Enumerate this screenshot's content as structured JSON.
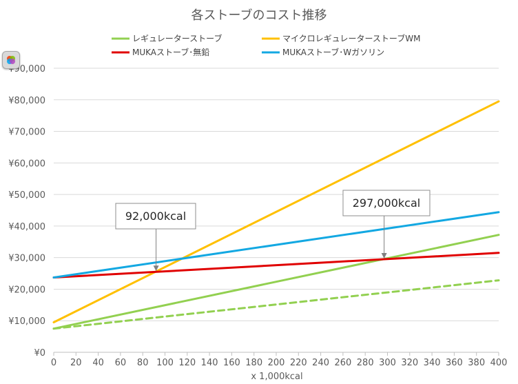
{
  "chart_data": {
    "type": "line",
    "title": "各ストーブのコスト推移",
    "xlabel": "x 1,000kcal",
    "ylabel": "",
    "xlim": [
      0,
      400
    ],
    "ylim": [
      0,
      90000
    ],
    "x_ticks": [
      "0",
      "20",
      "40",
      "60",
      "80",
      "100",
      "120",
      "140",
      "160",
      "180",
      "200",
      "220",
      "240",
      "260",
      "280",
      "300",
      "320",
      "340",
      "360",
      "380",
      "400"
    ],
    "y_ticks": [
      "¥0",
      "¥10,000",
      "¥20,000",
      "¥30,000",
      "¥40,000",
      "¥50,000",
      "¥60,000",
      "¥70,000",
      "¥80,000",
      "¥90,000"
    ],
    "grid": true,
    "legend_position": "top",
    "series": [
      {
        "name": "レギュレーターストーブ",
        "color": "#92d050",
        "dash": false,
        "x": [
          0,
          400
        ],
        "y": [
          7500,
          37200
        ]
      },
      {
        "name": "",
        "color": "#92d050",
        "dash": true,
        "x": [
          0,
          400
        ],
        "y": [
          7500,
          22800
        ]
      },
      {
        "name": "マイクロレギュレーターストーブWM",
        "color": "#ffc000",
        "dash": false,
        "x": [
          0,
          400
        ],
        "y": [
          9500,
          79500
        ]
      },
      {
        "name": "MUKAストーブ･無鉛",
        "color": "#e00000",
        "dash": false,
        "x": [
          0,
          400
        ],
        "y": [
          23700,
          31500
        ]
      },
      {
        "name": "MUKAストーブ･Wガソリン",
        "color": "#13a8e2",
        "dash": false,
        "x": [
          0,
          400
        ],
        "y": [
          23700,
          44400
        ]
      }
    ],
    "annotations": [
      {
        "text": "92,000kcal",
        "x": 92,
        "y": 25500
      },
      {
        "text": "297,000kcal",
        "x": 297,
        "y": 29500
      }
    ]
  },
  "toolbar": {
    "icon": "copilot-icon"
  }
}
